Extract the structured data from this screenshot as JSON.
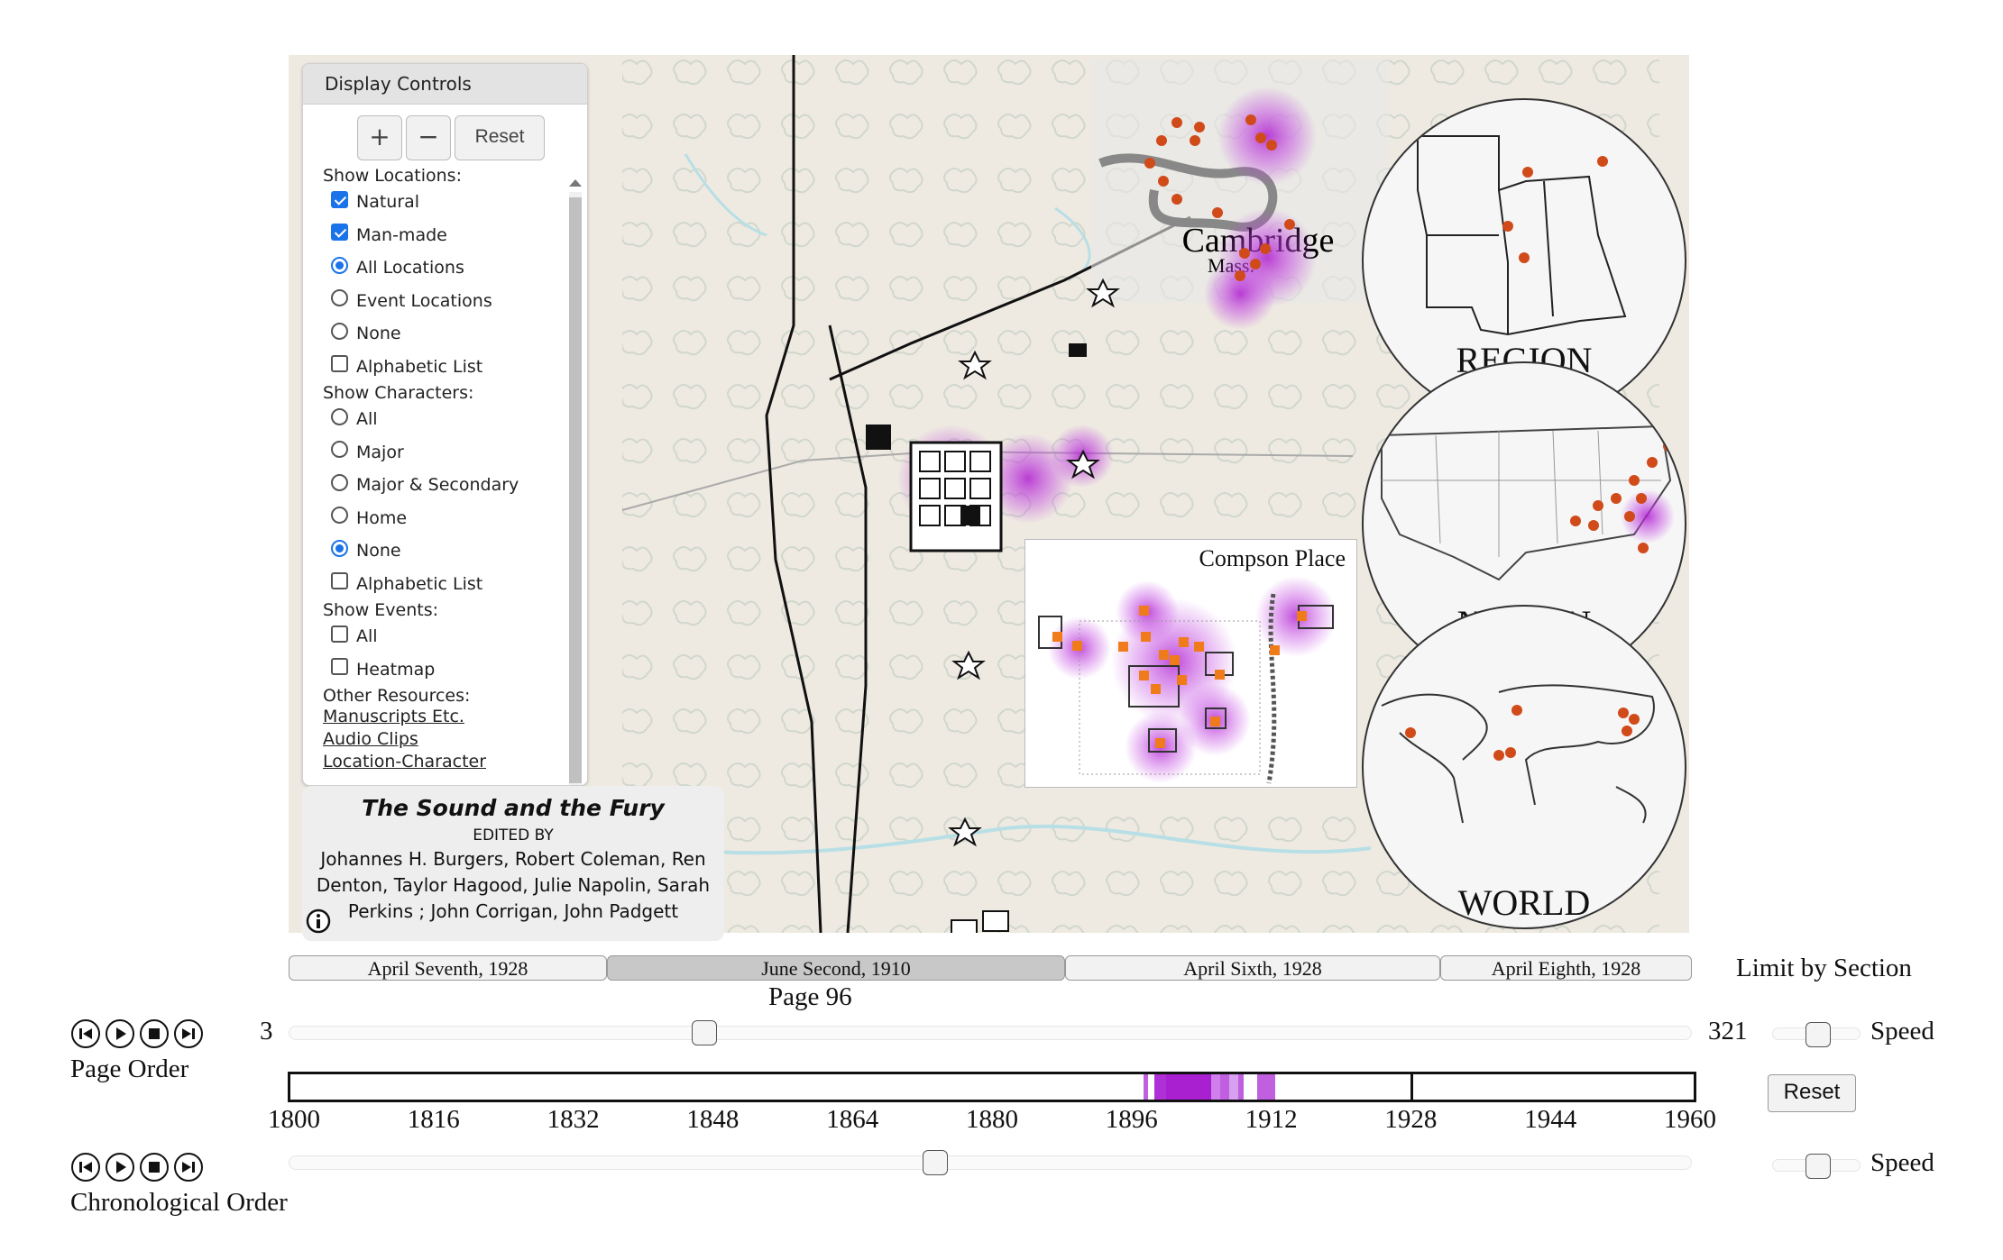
{
  "map": {
    "cambridge_label": "Cambridge",
    "cambridge_sub": "Mass.",
    "compson_label": "Compson Place",
    "region_label": "REGION",
    "nation_label": "NATION",
    "world_label": "WORLD"
  },
  "display_controls": {
    "title": "Display Controls",
    "zoom_in": "+",
    "zoom_out": "−",
    "reset": "Reset",
    "show_locations_label": "Show Locations:",
    "locations": [
      {
        "label": "Natural",
        "type": "checkbox",
        "checked": true
      },
      {
        "label": "Man-made",
        "type": "checkbox",
        "checked": true
      },
      {
        "label": "All Locations",
        "type": "radio",
        "checked": true
      },
      {
        "label": "Event Locations",
        "type": "radio",
        "checked": false
      },
      {
        "label": "None",
        "type": "radio",
        "checked": false
      },
      {
        "label": "Alphabetic List",
        "type": "checkbox",
        "checked": false
      }
    ],
    "show_characters_label": "Show Characters:",
    "characters": [
      {
        "label": "All",
        "type": "radio",
        "checked": false
      },
      {
        "label": "Major",
        "type": "radio",
        "checked": false
      },
      {
        "label": "Major & Secondary",
        "type": "radio",
        "checked": false
      },
      {
        "label": "Home",
        "type": "radio",
        "checked": false
      },
      {
        "label": "None",
        "type": "radio",
        "checked": true
      },
      {
        "label": "Alphabetic List",
        "type": "checkbox",
        "checked": false
      }
    ],
    "show_events_label": "Show Events:",
    "events": [
      {
        "label": "All",
        "type": "checkbox",
        "checked": false
      },
      {
        "label": "Heatmap",
        "type": "checkbox",
        "checked": false
      }
    ],
    "other_resources_label": "Other Resources:",
    "resources": [
      "Manuscripts Etc.",
      "Audio Clips",
      "Location-Character"
    ]
  },
  "title_card": {
    "title": "The Sound and the Fury",
    "edited_by": "EDITED BY",
    "authors": "Johannes H. Burgers, Robert Coleman, Ren Denton, Taylor Hagood, Julie Napolin, Sarah Perkins ; John Corrigan, John Padgett"
  },
  "sections": [
    {
      "label": "April Seventh, 1928",
      "active": false
    },
    {
      "label": "June Second, 1910",
      "active": true
    },
    {
      "label": "April Sixth, 1928",
      "active": false
    },
    {
      "label": "April Eighth, 1928",
      "active": false
    }
  ],
  "limit_by_section": "Limit by Section",
  "page_slider": {
    "current_label": "Page 96",
    "min": "3",
    "max": "321",
    "value": 96,
    "order_label": "Page Order",
    "speed_label": "Speed"
  },
  "timeline": {
    "ticks": [
      "1800",
      "1816",
      "1832",
      "1848",
      "1864",
      "1880",
      "1896",
      "1912",
      "1928",
      "1944",
      "1960"
    ],
    "range": [
      1800,
      1960
    ],
    "marker_year": 1928,
    "reset": "Reset"
  },
  "chrono_slider": {
    "order_label": "Chronological Order",
    "speed_label": "Speed",
    "value_fraction": 0.46
  },
  "playback": [
    "skip-back",
    "play",
    "stop",
    "skip-forward"
  ]
}
